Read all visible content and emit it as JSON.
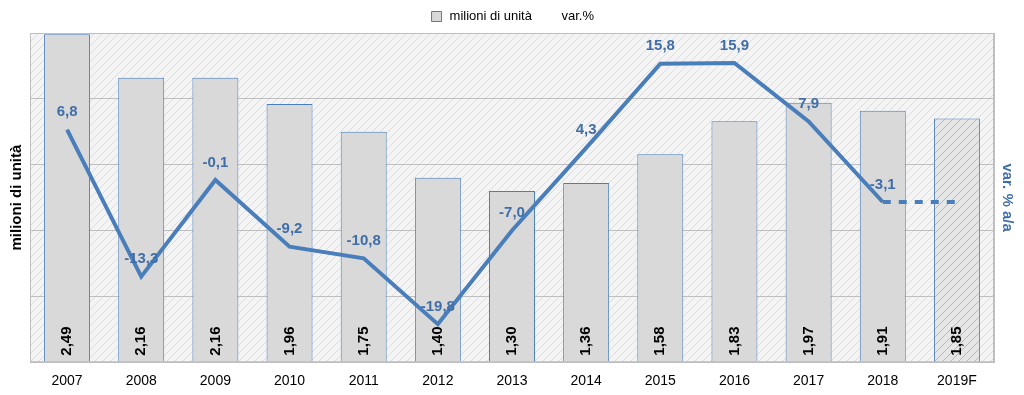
{
  "chart_data": {
    "type": "bar",
    "categories": [
      "2007",
      "2008",
      "2009",
      "2010",
      "2011",
      "2012",
      "2013",
      "2014",
      "2015",
      "2016",
      "2017",
      "2018",
      "2019F"
    ],
    "series": [
      {
        "name": "milioni di unità",
        "type": "bar",
        "color": "#d9d9d9",
        "values": [
          2.49,
          2.16,
          2.16,
          1.96,
          1.75,
          1.4,
          1.3,
          1.36,
          1.58,
          1.83,
          1.97,
          1.91,
          1.85
        ],
        "value_labels": [
          "2,49",
          "2,16",
          "2,16",
          "1,96",
          "1,75",
          "1,40",
          "1,30",
          "1,36",
          "1,58",
          "1,83",
          "1,97",
          "1,91",
          "1,85"
        ]
      },
      {
        "name": "var.%",
        "type": "line",
        "color": "#4a7ebb",
        "axis": "y2",
        "values": [
          6.8,
          -13.3,
          -0.1,
          -9.2,
          -10.8,
          -19.8,
          -7.0,
          4.3,
          15.8,
          15.9,
          7.9,
          -3.1,
          -3.1
        ],
        "value_labels": [
          "6,8",
          "-13,3",
          "-0,1",
          "-9,2",
          "-10,8",
          "-19,8",
          "-7,0",
          "4,3",
          "15,8",
          "15,9",
          "7,9",
          "-3,1",
          null
        ]
      }
    ],
    "ylabel": "milioni di unità",
    "y2label": "var. % a/a",
    "ylim": [
      0,
      2.5
    ],
    "yticks": [
      0,
      0.5,
      1,
      1.5,
      2,
      2.5
    ],
    "y2lim": [
      -25,
      20
    ],
    "y2ticks": [
      -25,
      -20,
      -15,
      -10,
      -5,
      0,
      5,
      10,
      15,
      20
    ],
    "grid": true,
    "legend": "top",
    "data_labels": true,
    "tick_labels": "x"
  }
}
